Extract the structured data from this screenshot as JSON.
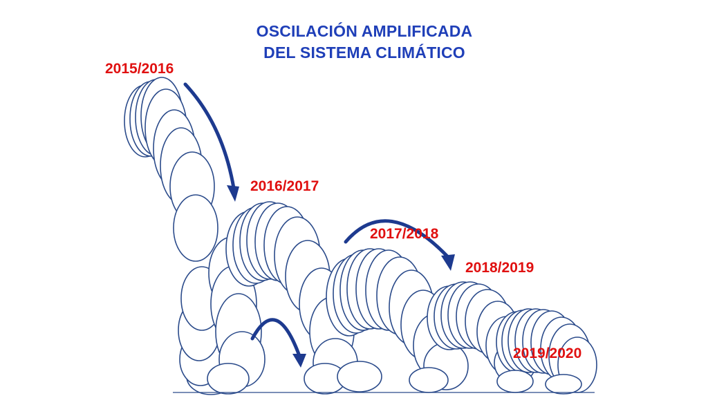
{
  "title": {
    "line1": "OSCILACIÓN AMPLIFICADA",
    "line2": "DEL SISTEMA CLIMÁTICO"
  },
  "labels": [
    "2015/2016",
    "2016/2017",
    "2017/2018",
    "2018/2019",
    "2019/2020"
  ],
  "colors": {
    "title": "#1f3fb8",
    "label": "#e01010",
    "ball_stroke": "#2a4a8a",
    "arrow": "#1d3a8f"
  }
}
